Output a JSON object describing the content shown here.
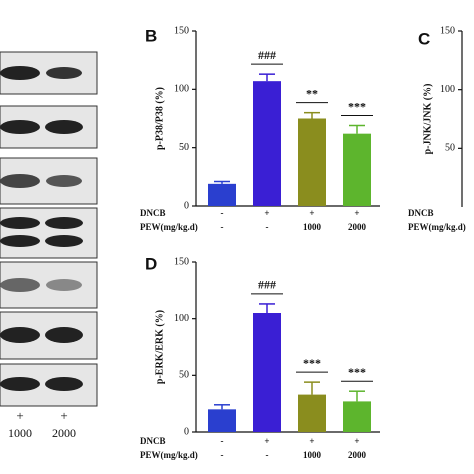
{
  "blot": {
    "lane_signs": [
      "+",
      "+"
    ],
    "doses": [
      "1000",
      "2000"
    ]
  },
  "chart_data": [
    {
      "type": "bar",
      "panel": "B",
      "ylabel": "p-P38/P38 (%)",
      "categories": [
        null,
        null,
        null,
        null
      ],
      "values": [
        19,
        107,
        75,
        62
      ],
      "errors": [
        2,
        6,
        5,
        7
      ],
      "annotations": [
        null,
        "###",
        "**",
        "***"
      ],
      "colors": [
        "#2a3fcf",
        "#3a1fd4",
        "#8a8d1e",
        "#5db52d"
      ],
      "row_labels": [
        {
          "name": "DNCB",
          "cells": [
            "-",
            "+",
            "+",
            "+"
          ]
        },
        {
          "name": "PEW(mg/kg.d)",
          "cells": [
            "-",
            "-",
            "1000",
            "2000"
          ]
        }
      ],
      "ylim": [
        0,
        150
      ],
      "yticks": [
        0,
        50,
        100,
        150
      ]
    },
    {
      "type": "bar",
      "panel": "C",
      "ylabel": "p-JNK/JNK (%)",
      "categories": [],
      "values": [],
      "row_labels": [
        {
          "name": "DNCB",
          "cells": []
        },
        {
          "name": "PEW(mg/kg.d)",
          "cells": []
        }
      ],
      "ylim": [
        0,
        150
      ],
      "yticks": [
        50,
        100,
        150
      ]
    },
    {
      "type": "bar",
      "panel": "D",
      "ylabel": "p-ERK/ERK (%)",
      "categories": [
        null,
        null,
        null,
        null
      ],
      "values": [
        20,
        105,
        33,
        27
      ],
      "errors": [
        4,
        8,
        11,
        9
      ],
      "annotations": [
        null,
        "###",
        "***",
        "***"
      ],
      "colors": [
        "#2a3fcf",
        "#3a1fd4",
        "#8a8d1e",
        "#5db52d"
      ],
      "row_labels": [
        {
          "name": "DNCB",
          "cells": [
            "-",
            "+",
            "+",
            "+"
          ]
        },
        {
          "name": "PEW(mg/kg.d)",
          "cells": [
            "-",
            "-",
            "1000",
            "2000"
          ]
        }
      ],
      "ylim": [
        0,
        150
      ],
      "yticks": [
        0,
        50,
        100,
        150
      ]
    }
  ]
}
